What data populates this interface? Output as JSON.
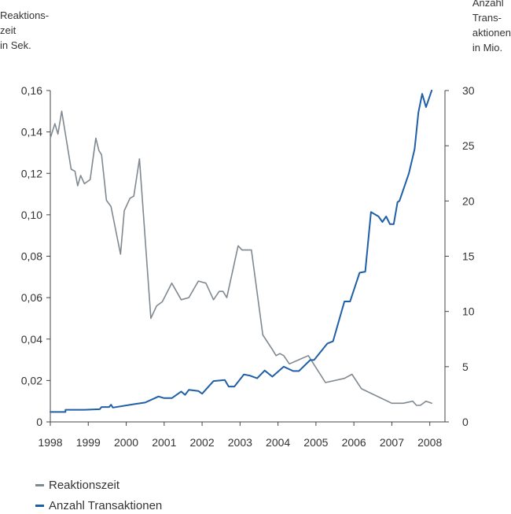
{
  "chart_data": {
    "type": "line",
    "title": "",
    "ylabel_left": "Reaktions-\nzeit\nin Sek.",
    "ylabel_right": "Anzahl\nTrans-\naktionen\nin Mio.",
    "x_ticks": [
      "1998",
      "1999",
      "2000",
      "2001",
      "2002",
      "2003",
      "2004",
      "2005",
      "2006",
      "2007",
      "2008"
    ],
    "xlim": [
      1998,
      2008.4
    ],
    "y_left_lim": [
      0,
      0.16
    ],
    "y_left_ticks": [
      0,
      0.02,
      0.04,
      0.06,
      0.08,
      0.1,
      0.12,
      0.14,
      0.16
    ],
    "y_left_tick_labels": [
      "0",
      "0,02",
      "0,04",
      "0,06",
      "0,08",
      "0,10",
      "0,12",
      "0,14",
      "0,16"
    ],
    "y_right_lim": [
      0,
      30
    ],
    "y_right_ticks": [
      0,
      5,
      10,
      15,
      20,
      25,
      30
    ],
    "y_right_tick_labels": [
      "0",
      "5",
      "10",
      "15",
      "20",
      "25",
      "30"
    ],
    "grid": false,
    "legend_placement": "bottom-left",
    "series": [
      {
        "name": "Reaktionszeit",
        "axis": "left",
        "color": "#808890",
        "x": [
          1998.0,
          1998.12,
          1998.2,
          1998.3,
          1998.55,
          1998.65,
          1998.72,
          1998.8,
          1998.9,
          1999.05,
          1999.2,
          1999.28,
          1999.35,
          1999.48,
          1999.6,
          1999.85,
          1999.95,
          2000.1,
          2000.2,
          2000.35,
          2000.65,
          2000.8,
          2000.95,
          2001.2,
          2001.45,
          2001.65,
          2001.9,
          2002.1,
          2002.3,
          2002.45,
          2002.55,
          2002.65,
          2002.95,
          2003.05,
          2003.3,
          2003.6,
          2003.85,
          2003.95,
          2004.05,
          2004.15,
          2004.3,
          2004.8,
          2005.25,
          2005.75,
          2005.95,
          2006.2,
          2007.0,
          2007.3,
          2007.55,
          2007.65,
          2007.75,
          2007.9,
          2008.05
        ],
        "values": [
          0.137,
          0.144,
          0.139,
          0.15,
          0.122,
          0.121,
          0.114,
          0.119,
          0.115,
          0.117,
          0.137,
          0.131,
          0.129,
          0.107,
          0.104,
          0.081,
          0.102,
          0.108,
          0.109,
          0.127,
          0.05,
          0.056,
          0.058,
          0.067,
          0.059,
          0.06,
          0.068,
          0.067,
          0.059,
          0.063,
          0.063,
          0.06,
          0.085,
          0.083,
          0.083,
          0.042,
          0.035,
          0.032,
          0.033,
          0.032,
          0.028,
          0.032,
          0.019,
          0.021,
          0.023,
          0.016,
          0.009,
          0.009,
          0.01,
          0.008,
          0.008,
          0.01,
          0.009
        ]
      },
      {
        "name": "Anzahl Transaktionen",
        "axis": "right",
        "color": "#1f5fa6",
        "x": [
          1998.0,
          1998.4,
          1998.4,
          1998.9,
          1999.3,
          1999.35,
          1999.55,
          1999.6,
          1999.65,
          2000.2,
          2000.5,
          2000.85,
          2001.0,
          2001.2,
          2001.45,
          2001.55,
          2001.65,
          2001.9,
          2002.0,
          2002.3,
          2002.6,
          2002.7,
          2002.85,
          2003.1,
          2003.25,
          2003.45,
          2003.65,
          2003.85,
          2004.15,
          2004.4,
          2004.55,
          2004.85,
          2004.95,
          2005.3,
          2005.45,
          2005.75,
          2005.9,
          2006.15,
          2006.3,
          2006.45,
          2006.65,
          2006.75,
          2006.85,
          2006.95,
          2007.05,
          2007.15,
          2007.2,
          2007.45,
          2007.6,
          2007.7,
          2007.8,
          2007.9,
          2008.05
        ],
        "values": [
          0.9,
          0.9,
          1.1,
          1.1,
          1.15,
          1.35,
          1.35,
          1.55,
          1.3,
          1.6,
          1.75,
          2.3,
          2.15,
          2.15,
          2.75,
          2.45,
          2.9,
          2.8,
          2.55,
          3.7,
          3.8,
          3.2,
          3.2,
          4.3,
          4.2,
          3.95,
          4.65,
          4.1,
          5.0,
          4.6,
          4.6,
          5.6,
          5.6,
          7.1,
          7.3,
          10.9,
          10.9,
          13.5,
          13.6,
          19.0,
          18.6,
          18.1,
          18.6,
          17.9,
          17.9,
          19.9,
          20.0,
          22.5,
          24.7,
          28.0,
          29.7,
          28.5,
          30.0
        ]
      }
    ]
  }
}
